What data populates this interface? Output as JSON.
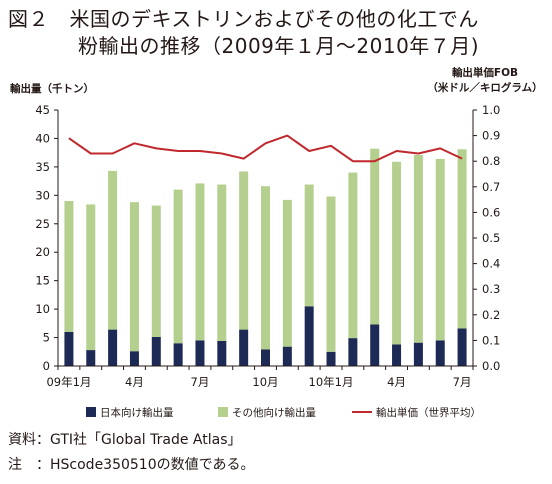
{
  "title_line1": "図２　米国のデキストリンおよびその他の化工でん",
  "title_line2": "粉輸出の推移（2009年１月〜2010年７月)",
  "notes": {
    "source": "資料：GTI社「Global Trade Atlas」",
    "note": "注　：HScode350510の数値である。"
  },
  "chart_data": {
    "type": "bar",
    "y_left_label": "輸出量（千トン）",
    "y_right_label_1": "輸出単価FOB",
    "y_right_label_2": "（米ドル／キログラム）",
    "ylim_left": [
      0,
      45
    ],
    "ylim_right": [
      0,
      1.0
    ],
    "yticks_left": [
      "0",
      "5",
      "10",
      "15",
      "20",
      "25",
      "30",
      "35",
      "40",
      "45"
    ],
    "yticks_right": [
      "0.0",
      "0.1",
      "0.2",
      "0.3",
      "0.4",
      "0.5",
      "0.6",
      "0.7",
      "0.8",
      "0.9",
      "1.0"
    ],
    "x_tick_labels": [
      "09年1月",
      "4月",
      "7月",
      "10月",
      "10年1月",
      "4月",
      "7月"
    ],
    "x_tick_positions": [
      0,
      3,
      6,
      9,
      12,
      15,
      18
    ],
    "categories": [
      "2009-01",
      "2009-02",
      "2009-03",
      "2009-04",
      "2009-05",
      "2009-06",
      "2009-07",
      "2009-08",
      "2009-09",
      "2009-10",
      "2009-11",
      "2009-12",
      "2010-01",
      "2010-02",
      "2010-03",
      "2010-04",
      "2010-05",
      "2010-06",
      "2010-07"
    ],
    "series": [
      {
        "name": "日本向け輸出量",
        "type": "stacked-bar",
        "color": "#1c2a55",
        "values": [
          6.0,
          2.8,
          6.4,
          2.6,
          5.1,
          4.0,
          4.5,
          4.4,
          6.4,
          2.9,
          3.4,
          10.5,
          2.5,
          4.9,
          7.3,
          3.8,
          4.1,
          4.5,
          6.6
        ]
      },
      {
        "name": "その他向け輸出量",
        "type": "stacked-bar",
        "color": "#b5cf8e",
        "values": [
          23.0,
          25.6,
          27.9,
          26.2,
          23.1,
          27.0,
          27.6,
          27.5,
          27.8,
          28.7,
          25.8,
          21.4,
          27.3,
          29.1,
          30.9,
          32.1,
          33.0,
          31.9,
          31.5
        ]
      },
      {
        "name": "輸出単価（世界平均）",
        "type": "line",
        "axis": "right",
        "color": "#c0282d",
        "values": [
          0.89,
          0.83,
          0.83,
          0.87,
          0.85,
          0.84,
          0.84,
          0.83,
          0.81,
          0.87,
          0.9,
          0.84,
          0.86,
          0.8,
          0.8,
          0.84,
          0.83,
          0.85,
          0.81
        ]
      }
    ],
    "legend_position": "bottom"
  }
}
